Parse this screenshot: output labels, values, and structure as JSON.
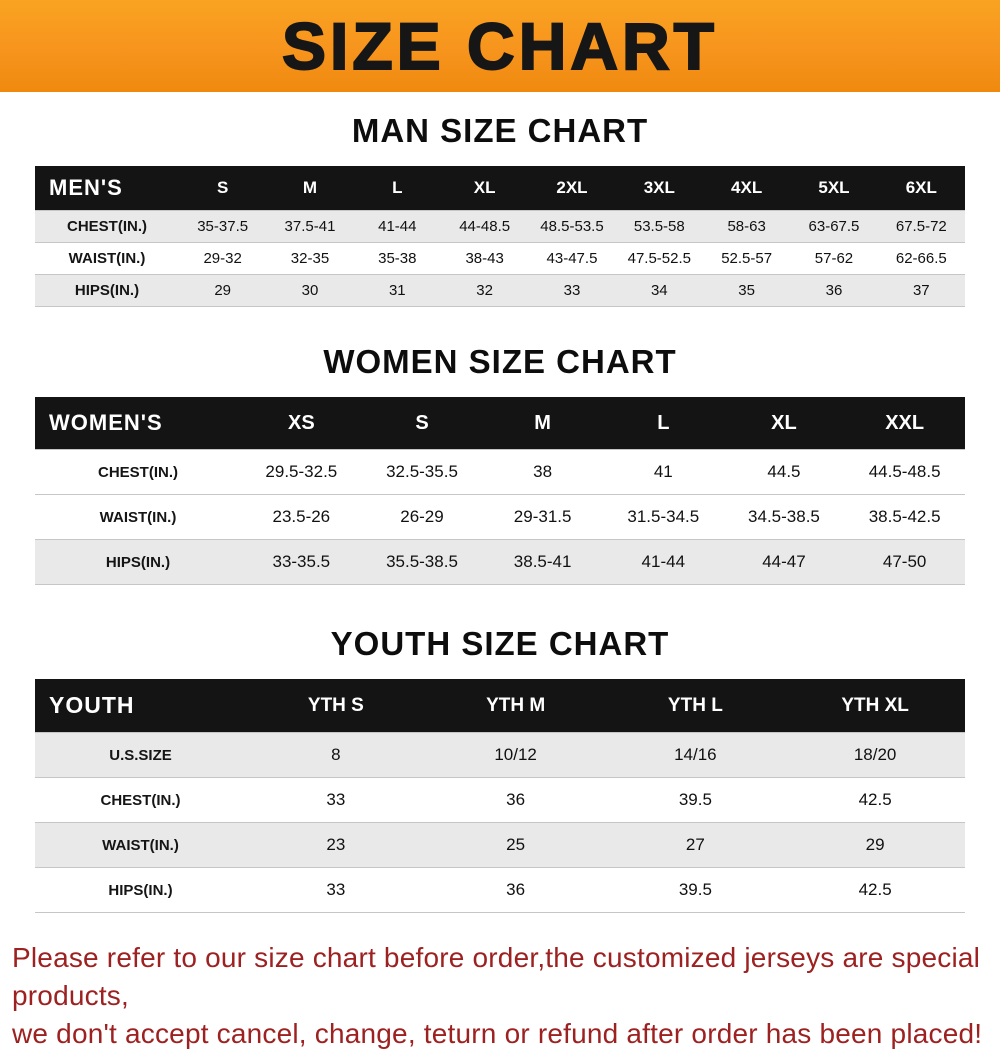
{
  "banner": {
    "title": "SIZE CHART"
  },
  "colors": {
    "banner_orange": "#F7941D",
    "table_header_black": "#141414",
    "row_stripe_gray": "#E9E9E9",
    "footer_red": "#9E2121"
  },
  "men": {
    "heading": "MAN SIZE CHART",
    "table": {
      "name": "MEN'S",
      "columns": [
        "S",
        "M",
        "L",
        "XL",
        "2XL",
        "3XL",
        "4XL",
        "5XL",
        "6XL"
      ],
      "rows": [
        {
          "label": "CHEST(IN.)",
          "values": [
            "35-37.5",
            "37.5-41",
            "41-44",
            "44-48.5",
            "48.5-53.5",
            "53.5-58",
            "58-63",
            "63-67.5",
            "67.5-72"
          ]
        },
        {
          "label": "WAIST(IN.)",
          "values": [
            "29-32",
            "32-35",
            "35-38",
            "38-43",
            "43-47.5",
            "47.5-52.5",
            "52.5-57",
            "57-62",
            "62-66.5"
          ]
        },
        {
          "label": "HIPS(IN.)",
          "values": [
            "29",
            "30",
            "31",
            "32",
            "33",
            "34",
            "35",
            "36",
            "37"
          ]
        }
      ]
    }
  },
  "women": {
    "heading": "WOMEN SIZE CHART",
    "table": {
      "name": "WOMEN'S",
      "columns": [
        "XS",
        "S",
        "M",
        "L",
        "XL",
        "XXL"
      ],
      "rows": [
        {
          "label": "CHEST(IN.)",
          "values": [
            "29.5-32.5",
            "32.5-35.5",
            "38",
            "41",
            "44.5",
            "44.5-48.5"
          ]
        },
        {
          "label": "WAIST(IN.)",
          "values": [
            "23.5-26",
            "26-29",
            "29-31.5",
            "31.5-34.5",
            "34.5-38.5",
            "38.5-42.5"
          ]
        },
        {
          "label": "HIPS(IN.)",
          "values": [
            "33-35.5",
            "35.5-38.5",
            "38.5-41",
            "41-44",
            "44-47",
            "47-50"
          ]
        }
      ]
    }
  },
  "youth": {
    "heading": "YOUTH SIZE CHART",
    "table": {
      "name": "YOUTH",
      "columns": [
        "YTH S",
        "YTH M",
        "YTH L",
        "YTH XL"
      ],
      "rows": [
        {
          "label": "U.S.SIZE",
          "values": [
            "8",
            "10/12",
            "14/16",
            "18/20"
          ]
        },
        {
          "label": "CHEST(IN.)",
          "values": [
            "33",
            "36",
            "39.5",
            "42.5"
          ]
        },
        {
          "label": "WAIST(IN.)",
          "values": [
            "23",
            "25",
            "27",
            "29"
          ]
        },
        {
          "label": "HIPS(IN.)",
          "values": [
            "33",
            "36",
            "39.5",
            "42.5"
          ]
        }
      ]
    }
  },
  "footer": {
    "line1": "Please refer to our size chart before order,the customized jerseys are special products,",
    "line2": "we don't accept cancel, change, teturn or refund after order has been placed!"
  }
}
